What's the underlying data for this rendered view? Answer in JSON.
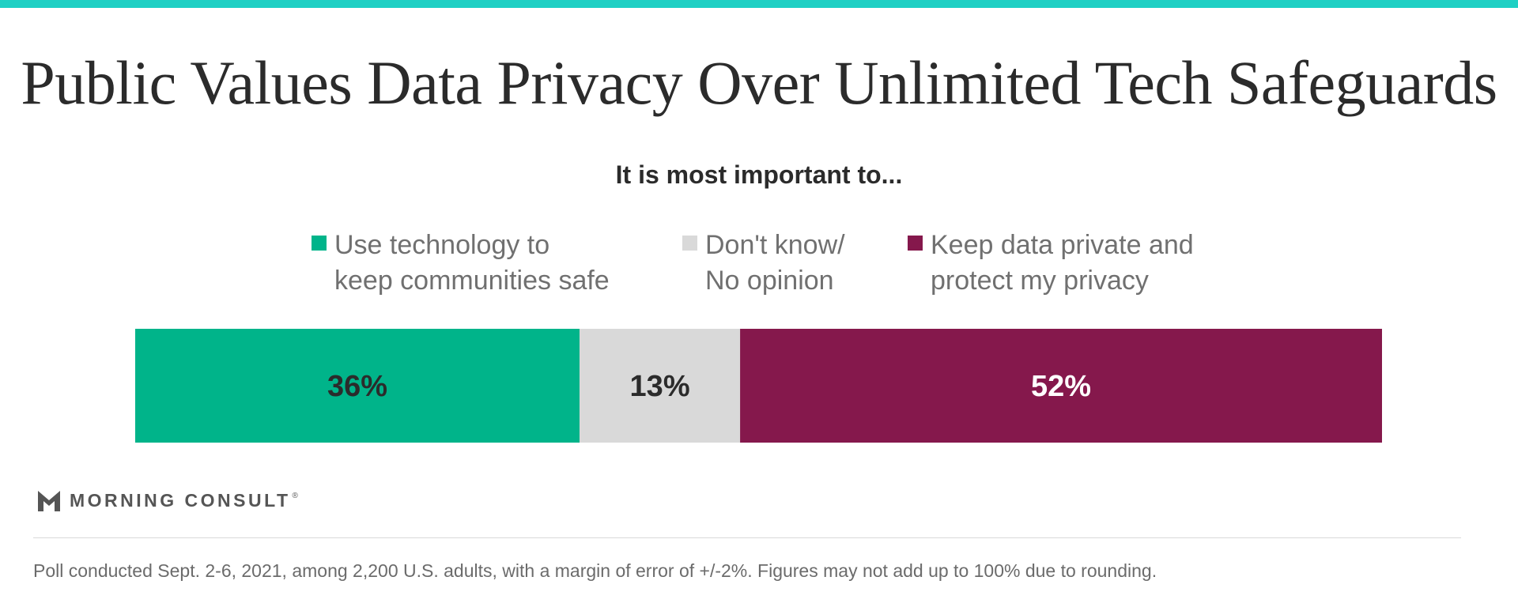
{
  "header": {
    "accent_color": "#1fd0c4",
    "title": "Public Values Data Privacy Over Unlimited Tech Safeguards"
  },
  "chart_data": {
    "type": "bar",
    "orientation": "horizontal-stacked",
    "title": "Public Values Data Privacy Over Unlimited Tech Safeguards",
    "subtitle": "It is most important to...",
    "xlabel": "",
    "ylabel": "",
    "grid": false,
    "legend_position": "top",
    "xlim": [
      0,
      101
    ],
    "series": [
      {
        "name": "Use technology to keep communities safe",
        "name_lines": [
          "Use technology to",
          "keep communities safe"
        ],
        "value": 36,
        "label": "36%",
        "color": "#00b48a",
        "label_color": "#2b2b2b"
      },
      {
        "name": "Don't know/ No opinion",
        "name_lines": [
          "Don't know/",
          "No opinion"
        ],
        "value": 13,
        "label": "13%",
        "color": "#d9d9d9",
        "label_color": "#2b2b2b"
      },
      {
        "name": "Keep data private and protect my privacy",
        "name_lines": [
          "Keep data private and",
          "protect my privacy"
        ],
        "value": 52,
        "label": "52%",
        "color": "#85184c",
        "label_color": "#ffffff"
      }
    ]
  },
  "branding": {
    "logo_text": "MORNING CONSULT",
    "logo_mark": "®",
    "logo_icon": "morning-consult-m-icon"
  },
  "footer": {
    "note": "Poll conducted Sept. 2-6, 2021, among 2,200 U.S. adults, with a margin of error of +/-2%. Figures may not add up to 100% due to rounding."
  }
}
